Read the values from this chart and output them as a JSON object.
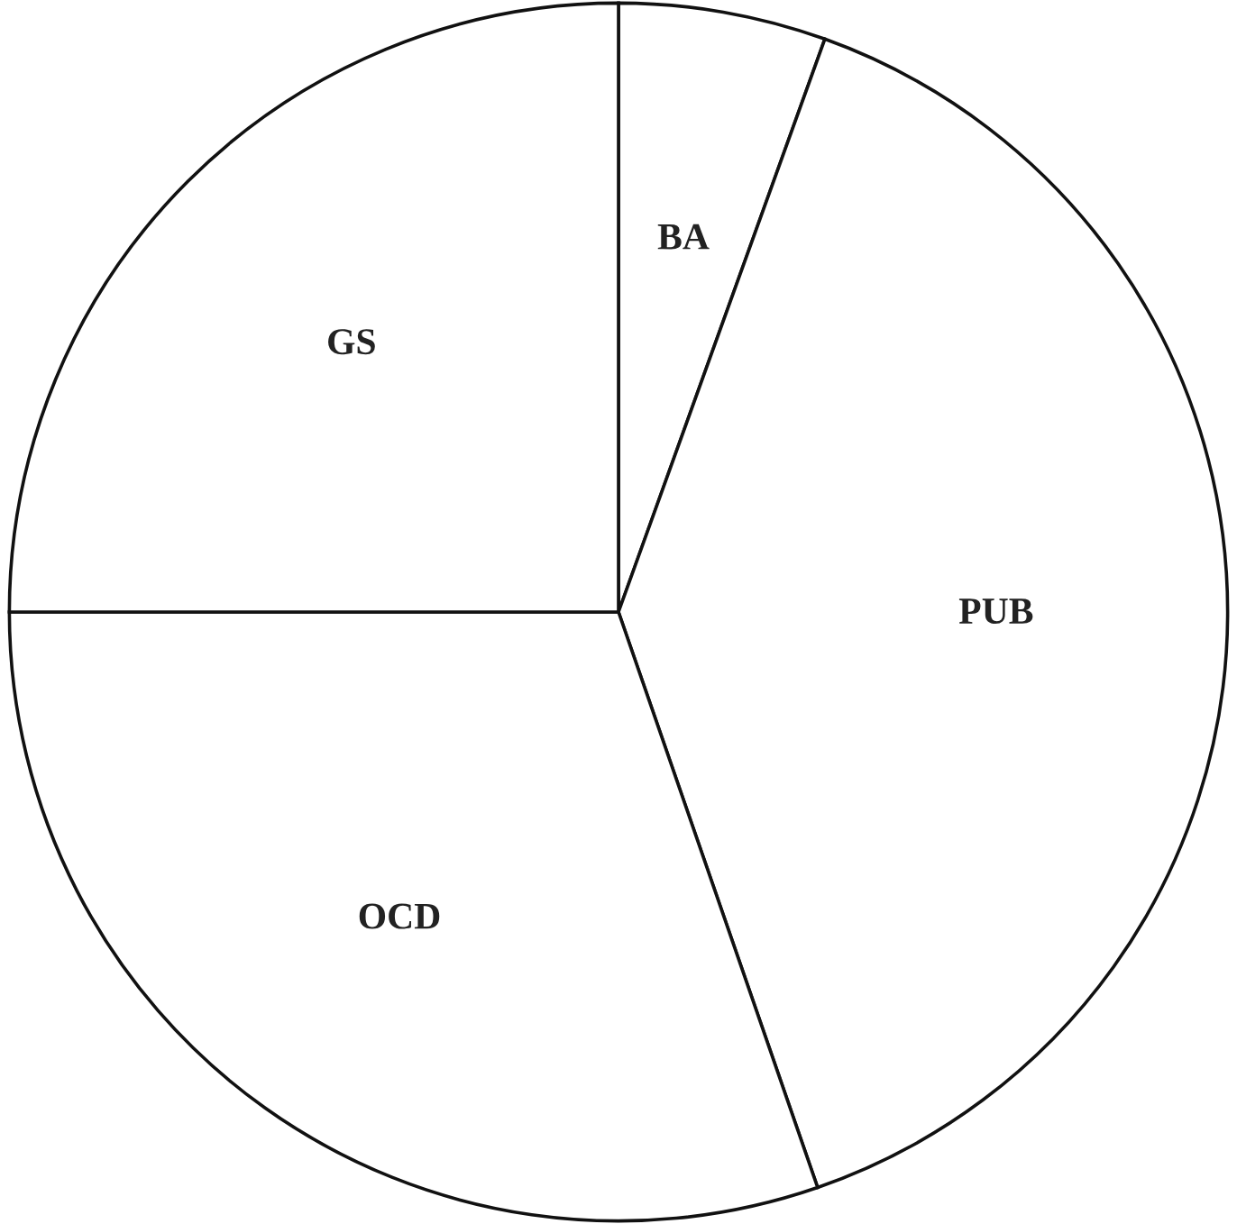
{
  "chart_data": {
    "type": "pie",
    "categories": [
      "BA",
      "PUB",
      "OCD",
      "GS"
    ],
    "values": [
      5.5,
      39.2,
      30.3,
      25.0
    ],
    "colors": [
      "#ffffff",
      "#ffffff",
      "#ffffff",
      "#ffffff"
    ]
  }
}
